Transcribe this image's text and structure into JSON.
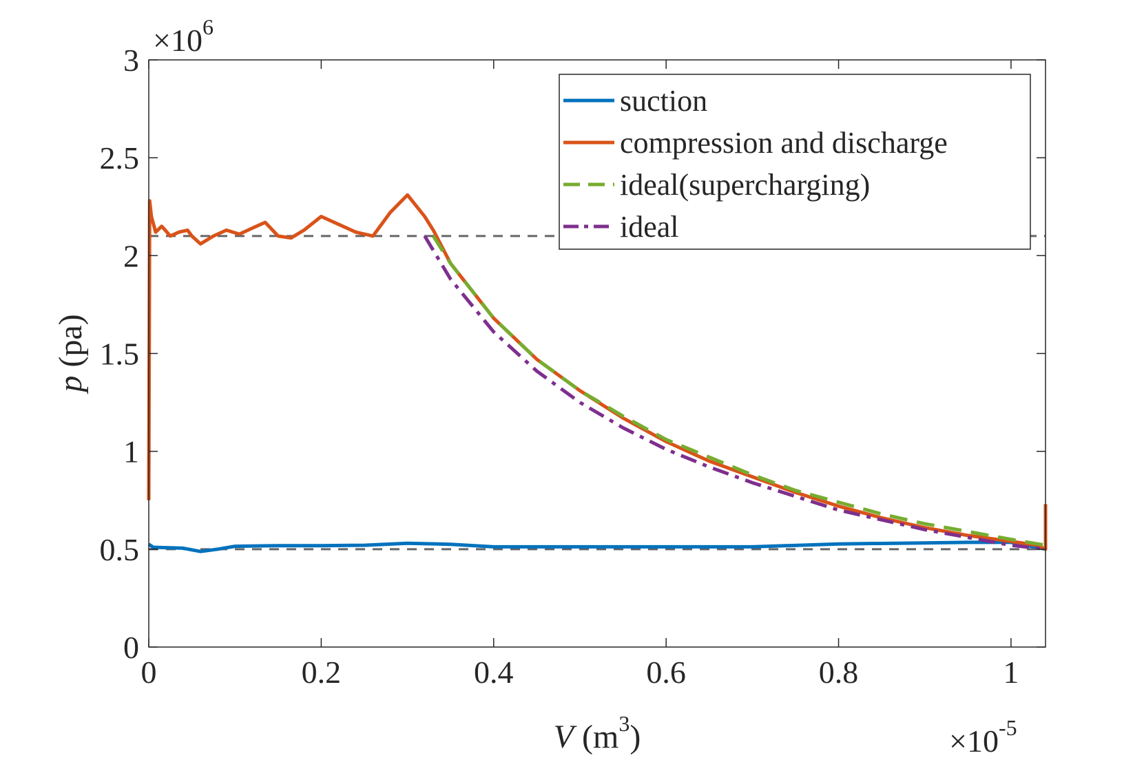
{
  "chart_data": {
    "type": "line",
    "title": "",
    "xlabel": {
      "var": "V",
      "unit_prefix": " (m",
      "unit_sup": "3",
      "unit_suffix": ")"
    },
    "ylabel": {
      "var": "p",
      "unit": " (pa)"
    },
    "x_exponent": {
      "prefix": "×10",
      "power": "-5"
    },
    "y_exponent": {
      "prefix": "×10",
      "power": "6"
    },
    "xlim": [
      0,
      1.04
    ],
    "ylim": [
      0,
      3
    ],
    "xticks": [
      0,
      0.2,
      0.4,
      0.6,
      0.8,
      1
    ],
    "xtick_labels": [
      "0",
      "0.2",
      "0.4",
      "0.6",
      "0.8",
      "1"
    ],
    "yticks": [
      0,
      0.5,
      1,
      1.5,
      2,
      2.5,
      3
    ],
    "ytick_labels": [
      "0",
      "0.5",
      "1",
      "1.5",
      "2",
      "2.5",
      "3"
    ],
    "grid": false,
    "legend_position": "top-right",
    "reference_lines": [
      {
        "y": 2.1,
        "color": "#666666",
        "style": "dashed"
      },
      {
        "y": 0.5,
        "color": "#666666",
        "style": "dashed"
      }
    ],
    "series": [
      {
        "name": "suction",
        "color": "#0072BD",
        "style": "solid",
        "x": [
          0,
          0.005,
          0.02,
          0.04,
          0.06,
          0.08,
          0.1,
          0.15,
          0.2,
          0.25,
          0.3,
          0.35,
          0.4,
          0.5,
          0.6,
          0.7,
          0.8,
          0.9,
          0.95,
          1.0,
          1.04
        ],
        "y": [
          0.525,
          0.51,
          0.508,
          0.505,
          0.488,
          0.5,
          0.515,
          0.518,
          0.518,
          0.52,
          0.53,
          0.525,
          0.512,
          0.512,
          0.512,
          0.512,
          0.527,
          0.532,
          0.535,
          0.535,
          0.5
        ]
      },
      {
        "name": "compression and discharge",
        "color": "#D95319",
        "style": "solid",
        "x": [
          0,
          0.001,
          0.003,
          0.008,
          0.015,
          0.025,
          0.035,
          0.045,
          0.05,
          0.06,
          0.075,
          0.09,
          0.105,
          0.12,
          0.135,
          0.15,
          0.165,
          0.18,
          0.2,
          0.22,
          0.24,
          0.26,
          0.28,
          0.3,
          0.32,
          0.33,
          0.35,
          0.4,
          0.45,
          0.5,
          0.55,
          0.6,
          0.65,
          0.7,
          0.75,
          0.8,
          0.85,
          0.9,
          0.95,
          1.0,
          1.03,
          1.04,
          1.04
        ],
        "y": [
          0.75,
          2.28,
          2.2,
          2.12,
          2.15,
          2.1,
          2.12,
          2.13,
          2.1,
          2.06,
          2.1,
          2.13,
          2.11,
          2.14,
          2.17,
          2.1,
          2.09,
          2.13,
          2.2,
          2.16,
          2.12,
          2.1,
          2.22,
          2.31,
          2.2,
          2.13,
          1.96,
          1.68,
          1.47,
          1.31,
          1.17,
          1.05,
          0.95,
          0.87,
          0.79,
          0.72,
          0.66,
          0.61,
          0.57,
          0.54,
          0.52,
          0.5,
          0.73
        ]
      },
      {
        "name": "ideal(supercharging)",
        "color": "#77AC30",
        "style": "dashed",
        "x": [
          0.33,
          0.35,
          0.4,
          0.45,
          0.5,
          0.55,
          0.6,
          0.65,
          0.7,
          0.75,
          0.8,
          0.85,
          0.9,
          0.95,
          1.0,
          1.04
        ],
        "y": [
          2.1,
          1.96,
          1.68,
          1.47,
          1.31,
          1.18,
          1.06,
          0.97,
          0.88,
          0.8,
          0.74,
          0.68,
          0.63,
          0.59,
          0.55,
          0.52
        ]
      },
      {
        "name": "ideal",
        "color": "#7E2F8E",
        "style": "dashdot",
        "x": [
          0.32,
          0.35,
          0.4,
          0.45,
          0.5,
          0.55,
          0.6,
          0.65,
          0.7,
          0.75,
          0.8,
          0.85,
          0.9,
          0.95,
          1.0,
          1.04
        ],
        "y": [
          2.1,
          1.88,
          1.61,
          1.41,
          1.25,
          1.12,
          1.01,
          0.92,
          0.84,
          0.77,
          0.7,
          0.65,
          0.6,
          0.56,
          0.52,
          0.5
        ]
      }
    ]
  }
}
